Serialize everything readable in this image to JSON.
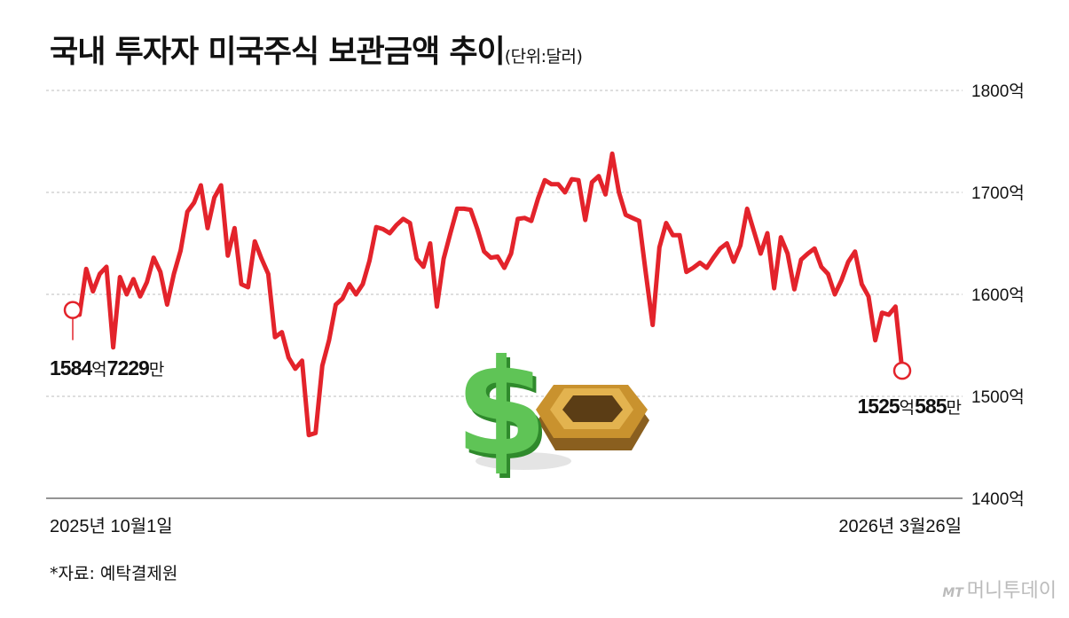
{
  "header": {
    "title": "국내 투자자 미국주식 보관금액 추이",
    "unit": "(단위:달러)"
  },
  "footer": {
    "source": "*자료: 예탁결제원",
    "logo_mark": "MT",
    "logo_text": "머니투데이"
  },
  "callouts": {
    "start": {
      "main1": "1584",
      "unit1": "억",
      "main2": "7229",
      "unit2": "만"
    },
    "end": {
      "main1": "1525",
      "unit1": "억",
      "main2": "585",
      "unit2": "만"
    }
  },
  "colors": {
    "line": "#e3232b",
    "grid": "#bdbdbd",
    "dollar": "#4cb648",
    "coin": "#c9922e"
  },
  "icons": [
    "dollar-sign-icon",
    "gold-coin-icon"
  ],
  "chart_data": {
    "type": "line",
    "title": "국내 투자자 미국주식 보관금액 추이",
    "unit": "(단위:달러)",
    "xlabel": "",
    "ylabel": "",
    "x_start": "2025년 10월1일",
    "x_end": "2026년 3월26일",
    "ylim": [
      1400,
      1800
    ],
    "yticks": [
      1400,
      1500,
      1600,
      1700,
      1800
    ],
    "ytick_labels": [
      "1400억",
      "1500억",
      "1600억",
      "1700억",
      "1800억"
    ],
    "grid": true,
    "series": [
      {
        "values": [
          1584.7,
          1580,
          1625,
          1603,
          1620,
          1627,
          1548,
          1617,
          1600,
          1615,
          1598,
          1612,
          1636,
          1622,
          1590,
          1620,
          1643,
          1681,
          1690,
          1707,
          1665,
          1695,
          1707,
          1638,
          1665,
          1610,
          1607,
          1652,
          1635,
          1620,
          1558,
          1563,
          1538,
          1527,
          1535,
          1462,
          1464,
          1530,
          1555,
          1590,
          1596,
          1610,
          1600,
          1610,
          1633,
          1666,
          1664,
          1660,
          1668,
          1674,
          1670,
          1635,
          1627,
          1650,
          1588,
          1635,
          1660,
          1684,
          1684,
          1683,
          1664,
          1642,
          1636,
          1637,
          1626,
          1640,
          1674,
          1675,
          1672,
          1694,
          1712,
          1708,
          1708,
          1700,
          1713,
          1712,
          1673,
          1710,
          1716,
          1698,
          1738,
          1700,
          1678,
          1675,
          1672,
          1620,
          1570,
          1646,
          1670,
          1658,
          1658,
          1622,
          1626,
          1631,
          1626,
          1636,
          1645,
          1650,
          1632,
          1648,
          1684,
          1662,
          1640,
          1660,
          1606,
          1656,
          1640,
          1605,
          1634,
          1640,
          1645,
          1627,
          1620,
          1600,
          1614,
          1632,
          1642,
          1610,
          1598,
          1555,
          1582,
          1580,
          1588,
          1525.1
        ]
      }
    ],
    "annotations": [
      {
        "label": "1584억7229만",
        "value": 1584.7
      },
      {
        "label": "1525억585만",
        "value": 1525.1
      }
    ]
  }
}
